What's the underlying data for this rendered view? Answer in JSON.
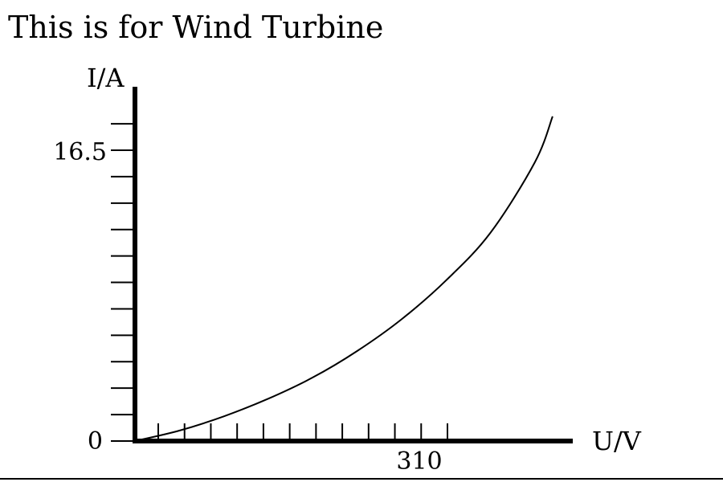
{
  "page": {
    "title": "This is for Wind Turbine"
  },
  "chart_data": {
    "type": "line",
    "title": "This is for Wind Turbine",
    "xlabel": "U/V",
    "ylabel": "I/A",
    "x_tick_labels": [
      "310"
    ],
    "y_tick_labels": [
      "0",
      "16.5"
    ],
    "x_minor_ticks": 12,
    "y_minor_ticks": 12,
    "grid": false,
    "xlim": [
      0,
      392
    ],
    "ylim": [
      0,
      19.9
    ],
    "series": [
      {
        "x": [
          0,
          40,
          80,
          120,
          160,
          200,
          240,
          280,
          320,
          360,
          376
        ],
        "y": [
          0,
          0.59,
          1.4,
          2.4,
          3.6,
          5.1,
          6.9,
          9.1,
          11.8,
          15.8,
          18.4
        ]
      }
    ]
  }
}
